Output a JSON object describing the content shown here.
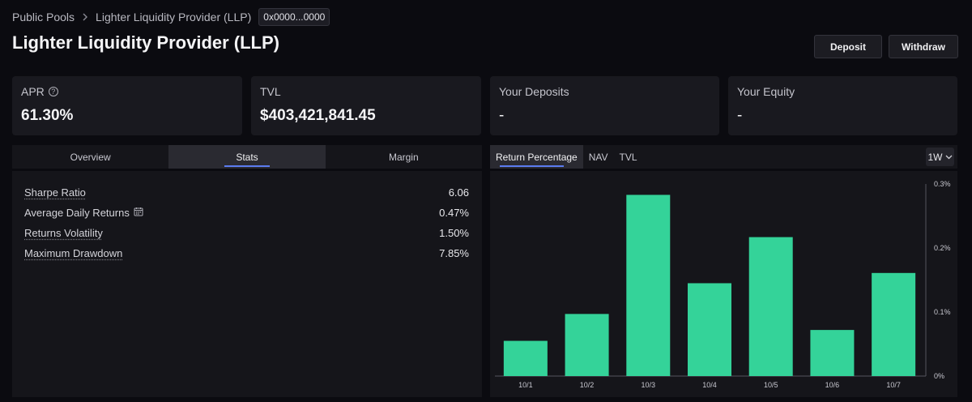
{
  "breadcrumb": {
    "root": "Public Pools",
    "current": "Lighter Liquidity Provider (LLP)",
    "address": "0x0000...0000"
  },
  "page_title": "Lighter Liquidity Provider (LLP)",
  "actions": {
    "deposit": "Deposit",
    "withdraw": "Withdraw"
  },
  "cards": [
    {
      "label": "APR",
      "value": "61.30%"
    },
    {
      "label": "TVL",
      "value": "$403,421,841.45"
    },
    {
      "label": "Your Deposits",
      "value": "-"
    },
    {
      "label": "Your Equity",
      "value": "-"
    }
  ],
  "left_tabs": [
    "Overview",
    "Stats",
    "Margin"
  ],
  "left_active_tab": "Stats",
  "stats": [
    {
      "name": "Sharpe Ratio",
      "value": "6.06"
    },
    {
      "name": "Average Daily Returns",
      "value": "0.47%"
    },
    {
      "name": "Returns Volatility",
      "value": "1.50%"
    },
    {
      "name": "Maximum Drawdown",
      "value": "7.85%"
    }
  ],
  "right_tabs": [
    "Return Percentage",
    "NAV",
    "TVL"
  ],
  "right_active_tab": "Return Percentage",
  "range": "1W",
  "colors": {
    "bar": "#34d399",
    "accent": "#5b7cf0"
  },
  "chart_data": {
    "type": "bar",
    "categories": [
      "10/1",
      "10/2",
      "10/3",
      "10/4",
      "10/5",
      "10/6",
      "10/7"
    ],
    "values": [
      0.055,
      0.097,
      0.283,
      0.145,
      0.217,
      0.072,
      0.161
    ],
    "ylim": [
      0,
      0.3
    ],
    "yticks": [
      "0%",
      "0.1%",
      "0.2%",
      "0.3%"
    ],
    "ytick_values": [
      0,
      0.1,
      0.2,
      0.3
    ],
    "grid": false,
    "y_axis_position": "right"
  }
}
